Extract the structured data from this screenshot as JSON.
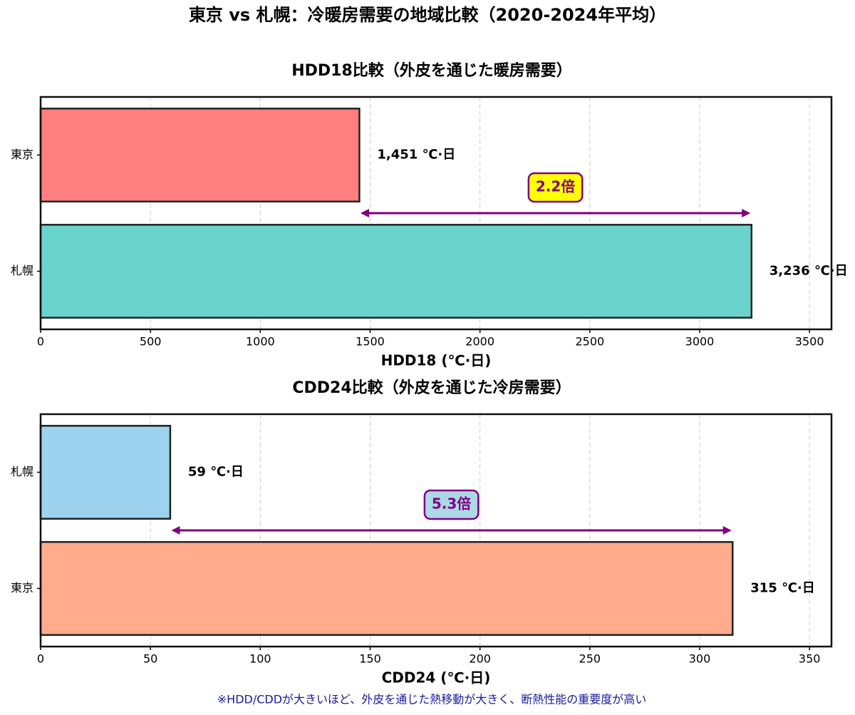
{
  "title": "東京 vs 札幌：冷暖房需要の地域比較（2020-2024年平均）",
  "footnote": "※HDD/CDDが大きいほど、外皮を通じた熱移動が大きく、断熱性能の重要度が高い",
  "chart_data": [
    {
      "type": "barh",
      "title": "HDD18比較（外皮を通じた暖房需要）",
      "categories": [
        "東京",
        "札幌"
      ],
      "values": [
        1451,
        3236
      ],
      "value_labels": [
        "1,451 ℃·日",
        "3,236 ℃·日"
      ],
      "colors": [
        "#ff7f7f",
        "#6ad4cc"
      ],
      "xlabel": "HDD18 (℃·日)",
      "xlim": [
        0,
        3600
      ],
      "xticks": [
        0,
        500,
        1000,
        1500,
        2000,
        2500,
        3000,
        3500
      ],
      "grid": true,
      "annotation": "2.2倍",
      "annotation_color": "#ffff00"
    },
    {
      "type": "barh",
      "title": "CDD24比較（外皮を通じた冷房需要）",
      "categories": [
        "札幌",
        "東京"
      ],
      "values": [
        59,
        315
      ],
      "value_labels": [
        "59 ℃·日",
        "315 ℃·日"
      ],
      "colors": [
        "#9dd3ee",
        "#ffab8c"
      ],
      "xlabel": "CDD24 (℃·日)",
      "xlim": [
        0,
        360
      ],
      "xticks": [
        0,
        50,
        100,
        150,
        200,
        250,
        300,
        350
      ],
      "grid": true,
      "annotation": "5.3倍",
      "annotation_color": "#add8e6"
    }
  ]
}
